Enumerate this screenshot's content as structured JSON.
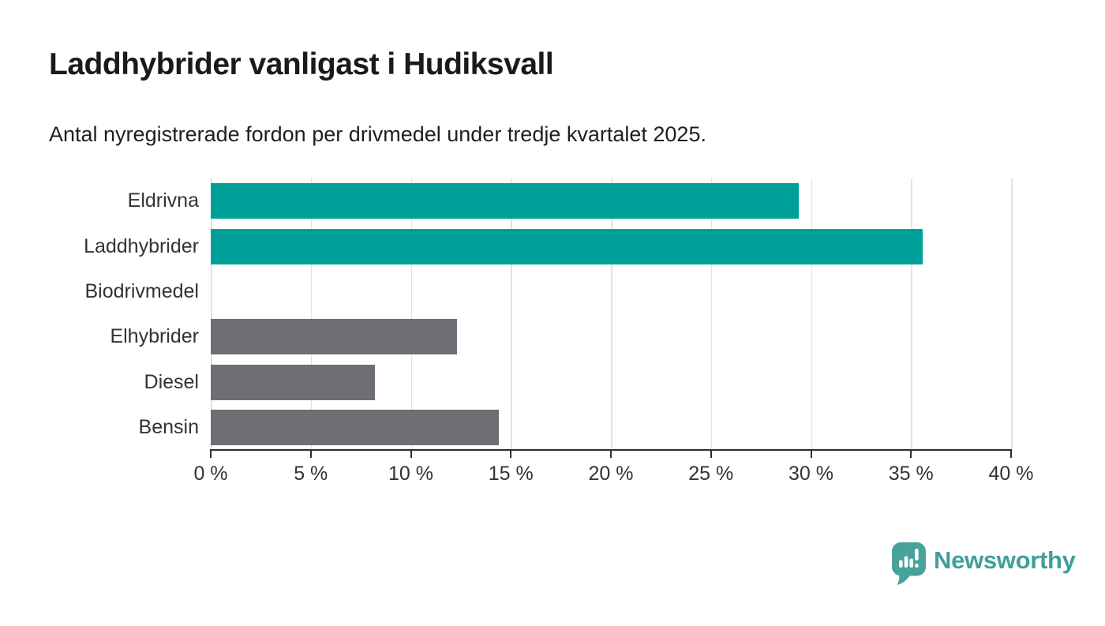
{
  "title": "Laddhybrider vanligast i Hudiksvall",
  "subtitle": "Antal nyregistrerade fordon per drivmedel under tredje kvartalet 2025.",
  "colors": {
    "accent_teal": "#00a099",
    "neutral_gray": "#6e6e74",
    "axis": "#2d2d2d",
    "grid": "#e2e2e2",
    "text": "#333333",
    "title_text": "#1a1a1a",
    "logo_bubble": "#47a29c",
    "logo_text": "#3f9f99"
  },
  "chart_data": {
    "type": "bar",
    "orientation": "horizontal",
    "title": "Laddhybrider vanligast i Hudiksvall",
    "subtitle": "Antal nyregistrerade fordon per drivmedel under tredje kvartalet 2025.",
    "categories": [
      "Eldrivna",
      "Laddhybrider",
      "Biodrivmedel",
      "Elhybrider",
      "Diesel",
      "Bensin"
    ],
    "values": [
      29.4,
      35.6,
      0,
      12.3,
      8.2,
      14.4
    ],
    "bar_colors": [
      "#00a099",
      "#00a099",
      "#00a099",
      "#6e6e74",
      "#6e6e74",
      "#6e6e74"
    ],
    "xlabel": "",
    "ylabel": "",
    "xlim": [
      0,
      40
    ],
    "x_ticks": [
      0,
      5,
      10,
      15,
      20,
      25,
      30,
      35,
      40
    ],
    "x_tick_labels": [
      "0 %",
      "5 %",
      "10 %",
      "15 %",
      "20 %",
      "25 %",
      "30 %",
      "35 %",
      "40 %"
    ],
    "grid": true,
    "legend": false
  },
  "footer": {
    "brand": "Newsworthy"
  }
}
